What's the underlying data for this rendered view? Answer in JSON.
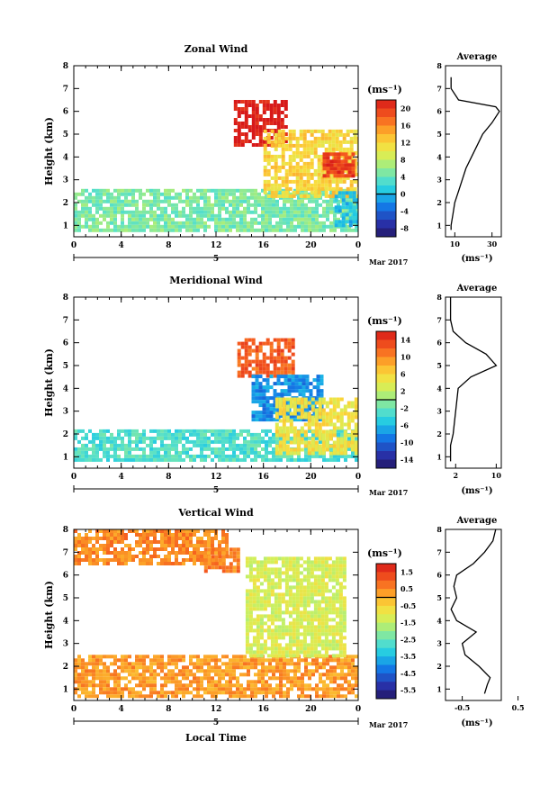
{
  "date_label": "Mar 2017",
  "bottom_xlabel": "Local Time",
  "avg_title": "Average",
  "unit_label": "(ms⁻¹)",
  "ylabel": "Height (km)",
  "panels": [
    {
      "title": "Zonal Wind",
      "colorbar_ticks": [
        "20",
        "16",
        "12",
        "8",
        "4",
        "0",
        "-4",
        "-8"
      ],
      "avg_xticks": [
        "10",
        "30"
      ],
      "avg_xunit": "(ms⁻¹)"
    },
    {
      "title": "Meridional Wind",
      "colorbar_ticks": [
        "14",
        "10",
        "6",
        "2",
        "-2",
        "-6",
        "-10",
        "-14"
      ],
      "avg_xticks": [
        "2",
        "10"
      ],
      "avg_xunit": "(ms⁻¹)"
    },
    {
      "title": "Vertical Wind",
      "colorbar_ticks": [
        "1.5",
        "0.5",
        "-0.5",
        "-1.5",
        "-2.5",
        "-3.5",
        "-4.5",
        "-5.5"
      ],
      "avg_xticks": [
        "-0.5",
        "0.5"
      ],
      "avg_xunit": "(ms⁻¹)"
    }
  ],
  "chart_data": [
    {
      "type": "heatmap",
      "title": "Zonal Wind",
      "xlabel": "",
      "ylabel": "Height (km)",
      "xlim": [
        0,
        24
      ],
      "ylim": [
        0.5,
        8
      ],
      "xticks": [
        "0",
        "4",
        "8",
        "12",
        "16",
        "20",
        "0"
      ],
      "day_label": "5",
      "yticks": [
        "1",
        "2",
        "3",
        "4",
        "5",
        "6",
        "7",
        "8"
      ],
      "colorbar": {
        "unit": "(ms⁻¹)",
        "min": -10,
        "max": 22,
        "ticks": [
          20,
          16,
          12,
          8,
          4,
          0,
          -4,
          -8
        ]
      },
      "regions": [
        {
          "t": [
            0,
            24
          ],
          "h": [
            0.8,
            2.6
          ],
          "value": 5
        },
        {
          "t": [
            13.5,
            18
          ],
          "h": [
            4.6,
            6.5
          ],
          "value": 22
        },
        {
          "t": [
            16,
            24
          ],
          "h": [
            2.2,
            5.2
          ],
          "value": 12
        },
        {
          "t": [
            21,
            23.5
          ],
          "h": [
            3.2,
            4.2
          ],
          "value": 20
        },
        {
          "t": [
            22,
            24
          ],
          "h": [
            1.0,
            2.5
          ],
          "value": 0
        }
      ],
      "average_profile": {
        "title": "Average",
        "xunit": "(ms⁻¹)",
        "xlim": [
          5,
          35
        ],
        "xticks": [
          "10",
          "30"
        ],
        "height_km": [
          0.8,
          1.0,
          1.5,
          2.0,
          2.5,
          3.0,
          3.5,
          4.0,
          4.5,
          5.0,
          5.5,
          6.0,
          6.2,
          6.5,
          7.0,
          7.5
        ],
        "value": [
          8,
          8,
          9,
          10,
          12,
          14,
          16,
          19,
          22,
          25,
          30,
          34,
          32,
          12,
          8,
          8
        ]
      }
    },
    {
      "type": "heatmap",
      "title": "Meridional Wind",
      "xlabel": "",
      "ylabel": "Height (km)",
      "xlim": [
        0,
        24
      ],
      "ylim": [
        0.5,
        8
      ],
      "xticks": [
        "0",
        "4",
        "8",
        "12",
        "16",
        "20",
        "0"
      ],
      "day_label": "5",
      "yticks": [
        "1",
        "2",
        "3",
        "4",
        "5",
        "6",
        "7",
        "8"
      ],
      "colorbar": {
        "unit": "(ms⁻¹)",
        "min": -16,
        "max": 16,
        "ticks": [
          14,
          10,
          6,
          2,
          -2,
          -6,
          -10,
          -14
        ]
      },
      "regions": [
        {
          "t": [
            0,
            24
          ],
          "h": [
            0.8,
            2.2
          ],
          "value": -3
        },
        {
          "t": [
            13.8,
            18.5
          ],
          "h": [
            4.5,
            6.2
          ],
          "value": 12
        },
        {
          "t": [
            15,
            21
          ],
          "h": [
            2.6,
            4.6
          ],
          "value": -8
        },
        {
          "t": [
            17,
            24
          ],
          "h": [
            1.2,
            3.6
          ],
          "value": 5
        }
      ],
      "average_profile": {
        "title": "Average",
        "xunit": "(ms⁻¹)",
        "xlim": [
          0,
          11
        ],
        "xticks": [
          "2",
          "10"
        ],
        "height_km": [
          0.8,
          1.5,
          2.0,
          3.0,
          4.0,
          4.5,
          5.0,
          5.5,
          6.0,
          6.5,
          7.0,
          7.5,
          8.0
        ],
        "value": [
          1,
          1,
          1.5,
          2,
          2.5,
          5,
          10,
          8,
          4,
          1.5,
          1,
          1,
          1
        ]
      }
    },
    {
      "type": "heatmap",
      "title": "Vertical Wind",
      "xlabel": "Local Time",
      "ylabel": "Height (km)",
      "xlim": [
        0,
        24
      ],
      "ylim": [
        0.5,
        8
      ],
      "xticks": [
        "0",
        "4",
        "8",
        "12",
        "16",
        "20",
        "0"
      ],
      "day_label": "5",
      "yticks": [
        "1",
        "2",
        "3",
        "4",
        "5",
        "6",
        "7",
        "8"
      ],
      "colorbar": {
        "unit": "(ms⁻¹)",
        "min": -6,
        "max": 2,
        "ticks": [
          1.5,
          0.5,
          -0.5,
          -1.5,
          -2.5,
          -3.5,
          -4.5,
          -5.5
        ]
      },
      "regions": [
        {
          "t": [
            0,
            13
          ],
          "h": [
            6.5,
            8.0
          ],
          "value": 0.5
        },
        {
          "t": [
            0,
            24
          ],
          "h": [
            0.7,
            2.5
          ],
          "value": 0.3
        },
        {
          "t": [
            14.5,
            23
          ],
          "h": [
            2.5,
            6.8
          ],
          "value": -1.2
        },
        {
          "t": [
            11,
            14
          ],
          "h": [
            6.2,
            7.2
          ],
          "value": 0.6
        }
      ],
      "average_profile": {
        "title": "Average",
        "xunit": "(ms⁻¹)",
        "xlim": [
          -0.8,
          0.2
        ],
        "xticks": [
          "-0.5",
          "0.5"
        ],
        "height_km": [
          0.8,
          1.2,
          1.5,
          2.0,
          2.5,
          3.0,
          3.5,
          4.0,
          4.5,
          5.0,
          5.5,
          6.0,
          6.5,
          7.0,
          7.5,
          8.0
        ],
        "value": [
          -0.1,
          -0.05,
          0.0,
          -0.2,
          -0.45,
          -0.5,
          -0.25,
          -0.6,
          -0.7,
          -0.6,
          -0.65,
          -0.6,
          -0.3,
          -0.1,
          0.05,
          0.1
        ]
      }
    }
  ]
}
